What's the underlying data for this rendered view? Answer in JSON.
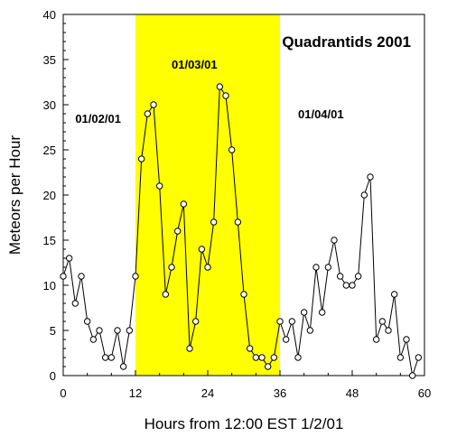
{
  "chart_data": {
    "type": "line",
    "title": "Quadrantids 2001",
    "xlabel": "Hours from 12:00 EST 1/2/01",
    "ylabel": "Meteors per Hour",
    "xlim": [
      0,
      60
    ],
    "ylim": [
      0,
      40
    ],
    "x_ticks": [
      0,
      12,
      24,
      36,
      48,
      60
    ],
    "y_ticks": [
      0,
      5,
      10,
      15,
      20,
      25,
      30,
      35,
      40
    ],
    "grid": false,
    "highlight_band": {
      "x_start": 12,
      "x_end": 36,
      "color": "#ffff00"
    },
    "annotations": [
      {
        "text": "01/02/01",
        "x": 2,
        "y": 28
      },
      {
        "text": "01/03/01",
        "x": 18,
        "y": 34
      },
      {
        "text": "01/04/01",
        "x": 39,
        "y": 28.5
      }
    ],
    "series": [
      {
        "x": [
          0,
          1,
          2,
          3,
          4,
          5,
          6,
          7,
          8,
          9,
          10,
          11,
          12,
          13,
          14,
          15,
          16,
          17,
          18,
          19,
          20,
          21,
          22,
          23,
          24,
          25,
          26,
          27,
          28,
          29,
          30,
          31,
          32,
          33,
          34,
          35,
          36,
          37,
          38,
          39,
          40,
          41,
          42,
          43,
          44,
          45,
          46,
          47,
          48,
          49,
          50,
          51,
          52,
          53,
          54,
          55,
          56,
          57,
          58,
          59
        ],
        "y": [
          11,
          13,
          8,
          11,
          6,
          4,
          5,
          2,
          2,
          5,
          1,
          5,
          11,
          24,
          29,
          30,
          21,
          9,
          12,
          16,
          19,
          3,
          6,
          14,
          12,
          17,
          32,
          31,
          25,
          17,
          9,
          3,
          2,
          2,
          1,
          2,
          6,
          4,
          6,
          2,
          7,
          5,
          12,
          7,
          12,
          15,
          11,
          10,
          10,
          11,
          20,
          22,
          4,
          6,
          5,
          9,
          2,
          4,
          0,
          2
        ]
      }
    ]
  }
}
